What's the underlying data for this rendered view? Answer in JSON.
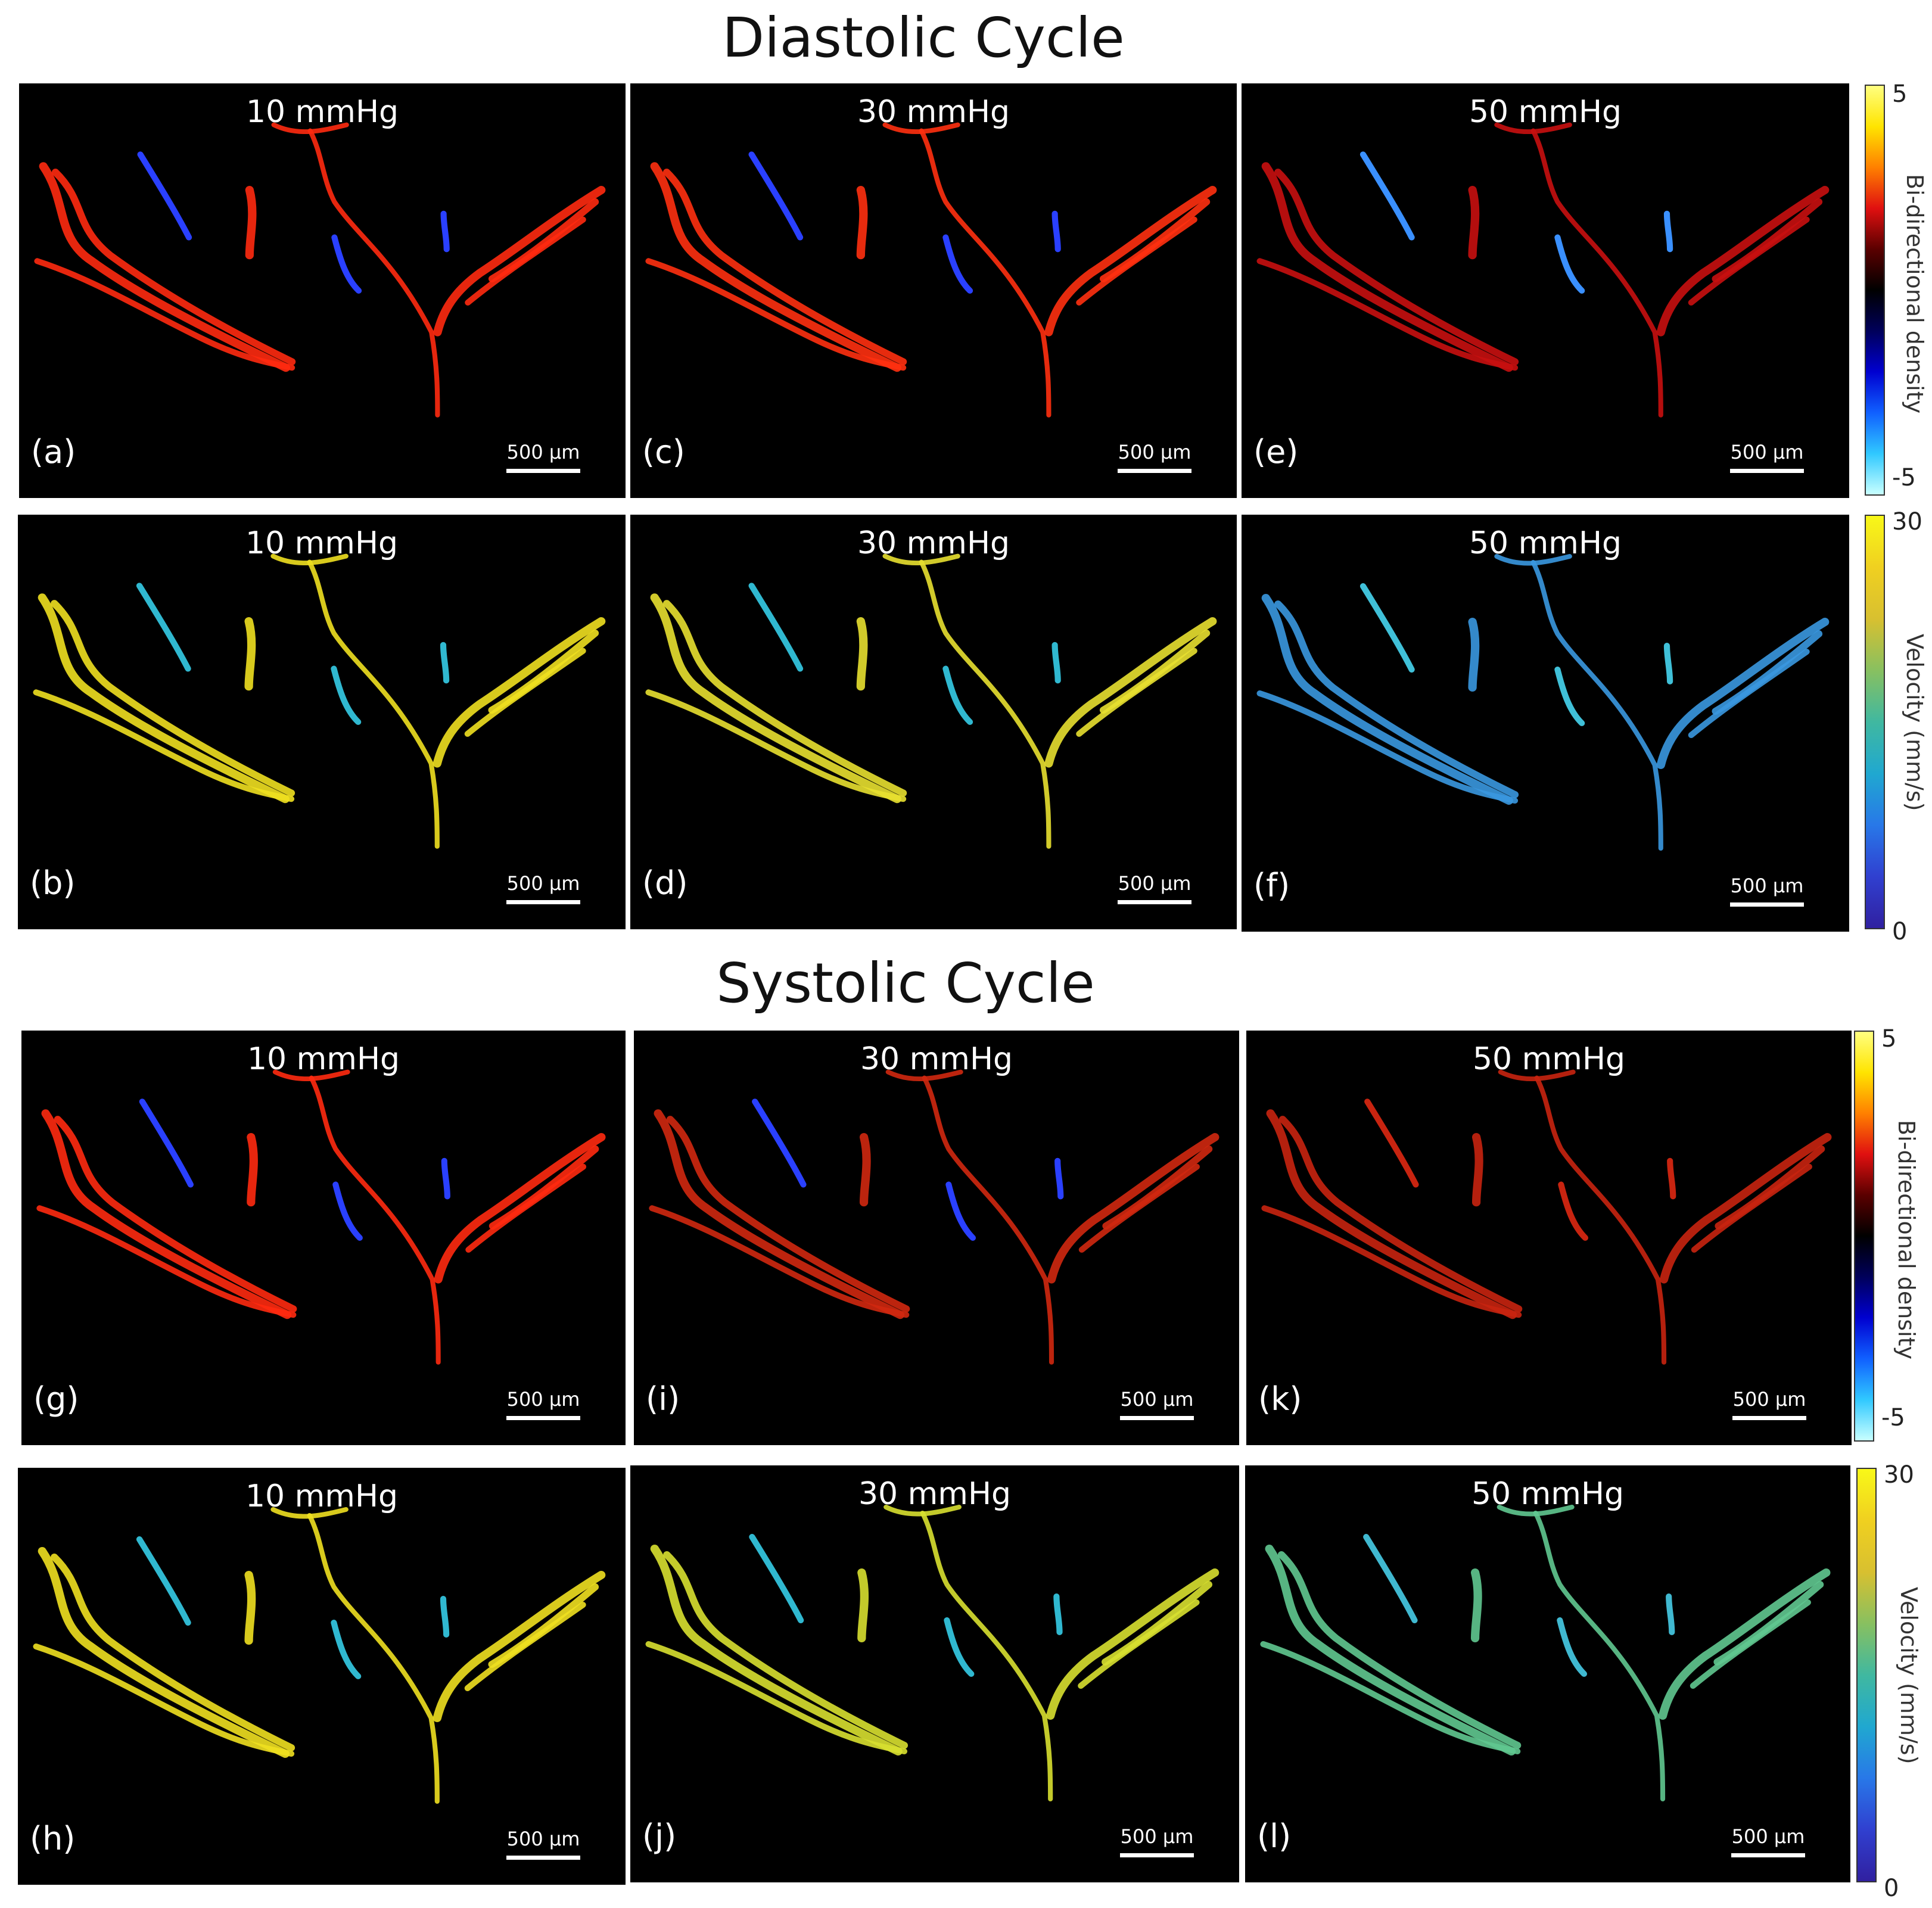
{
  "sections": {
    "diastolic_title": "Diastolic Cycle",
    "systolic_title": "Systolic Cycle"
  },
  "scale_label": "500 µm",
  "panels": {
    "a": {
      "title": "10 mmHg",
      "letter": "(a)",
      "map": "bidirectional",
      "stroke": "#ff2a10",
      "stroke2": "#2a40ff"
    },
    "c": {
      "title": "30 mmHg",
      "letter": "(c)",
      "map": "bidirectional",
      "stroke": "#ff3010",
      "stroke2": "#2a40ff"
    },
    "e": {
      "title": "50 mmHg",
      "letter": "(e)",
      "map": "bidirectional",
      "stroke": "#c81010",
      "stroke2": "#3a90ff"
    },
    "b": {
      "title": "10 mmHg",
      "letter": "(b)",
      "map": "velocity",
      "stroke": "#f0e020",
      "stroke2": "#30b8d0"
    },
    "d": {
      "title": "30 mmHg",
      "letter": "(d)",
      "map": "velocity",
      "stroke": "#e8e030",
      "stroke2": "#30b8d0"
    },
    "f": {
      "title": "50 mmHg",
      "letter": "(f)",
      "map": "velocity",
      "stroke": "#3a98e0",
      "stroke2": "#40c0d8"
    },
    "g": {
      "title": "10 mmHg",
      "letter": "(g)",
      "map": "bidirectional",
      "stroke": "#ff2a10",
      "stroke2": "#2a40ff"
    },
    "i": {
      "title": "30 mmHg",
      "letter": "(i)",
      "map": "bidirectional",
      "stroke": "#d02810",
      "stroke2": "#2a40ff"
    },
    "k": {
      "title": "50 mmHg",
      "letter": "(k)",
      "map": "bidirectional",
      "stroke": "#c82410",
      "stroke2": "#c82410"
    },
    "h": {
      "title": "10 mmHg",
      "letter": "(h)",
      "map": "velocity",
      "stroke": "#f0e020",
      "stroke2": "#30b8d0"
    },
    "j": {
      "title": "30 mmHg",
      "letter": "(j)",
      "map": "velocity",
      "stroke": "#d8e030",
      "stroke2": "#30b8d0"
    },
    "l": {
      "title": "50 mmHg",
      "letter": "(l)",
      "map": "velocity",
      "stroke": "#60c890",
      "stroke2": "#40b8d0"
    }
  },
  "colorbars": {
    "bidir": {
      "label": "Bi-directional density",
      "max": "5",
      "min": "-5"
    },
    "vel": {
      "label": "Velocity (mm/s)",
      "max": "30",
      "min": "0"
    }
  }
}
